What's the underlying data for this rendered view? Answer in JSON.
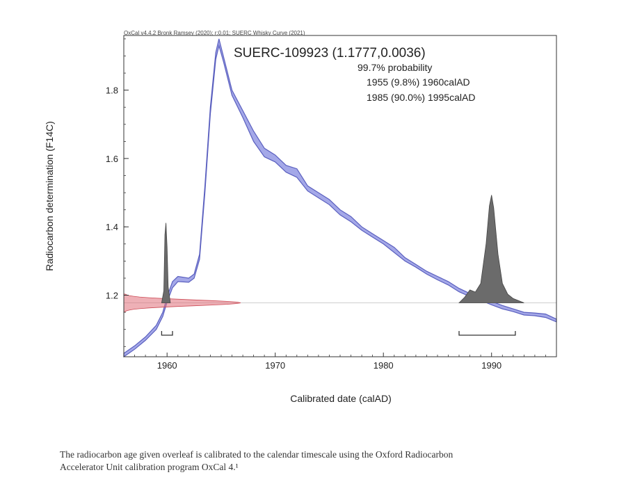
{
  "chart_data": {
    "type": "line",
    "header": "OxCal v4.4.2 Bronk Ramsey (2020); r:0.01; SUERC Whisky Curve (2021)",
    "title": "SUERC-109923 (1.1777,0.0036)",
    "probability_label": "99.7% probability",
    "ranges": [
      "1955 (9.8%) 1960calAD",
      "1985 (90.0%) 1995calAD"
    ],
    "xlabel": "Calibrated date (calAD)",
    "ylabel": "Radiocarbon determination (F14C)",
    "xlim": [
      1956,
      1996
    ],
    "ylim": [
      1.02,
      1.96
    ],
    "x_ticks": [
      1960,
      1970,
      1980,
      1990
    ],
    "y_ticks": [
      1.2,
      1.4,
      1.6,
      1.8
    ],
    "x_tick_labels": [
      "1960",
      "1970",
      "1980",
      "1990"
    ],
    "y_tick_labels": [
      "1.2",
      "1.4",
      "1.6",
      "1.8"
    ],
    "calibration_curve": {
      "name": "SUERC Whisky Curve (2021)",
      "x": [
        1956.0,
        1957.0,
        1958.0,
        1959.0,
        1959.6,
        1960.0,
        1960.5,
        1961.0,
        1962.0,
        1962.5,
        1963.0,
        1963.5,
        1964.0,
        1964.5,
        1964.8,
        1965.2,
        1966.0,
        1967.0,
        1968.0,
        1969.0,
        1970.0,
        1971.0,
        1972.0,
        1973.0,
        1974.0,
        1975.0,
        1976.0,
        1977.0,
        1978.0,
        1979.0,
        1980.0,
        1981.0,
        1982.0,
        1983.0,
        1984.0,
        1985.0,
        1986.0,
        1987.0,
        1988.0,
        1989.0,
        1990.0,
        1991.0,
        1992.0,
        1993.0,
        1994.0,
        1995.0,
        1996.0
      ],
      "upper": [
        1.03,
        1.052,
        1.078,
        1.112,
        1.15,
        1.195,
        1.24,
        1.255,
        1.25,
        1.262,
        1.32,
        1.52,
        1.75,
        1.91,
        1.95,
        1.9,
        1.8,
        1.74,
        1.68,
        1.63,
        1.61,
        1.58,
        1.57,
        1.52,
        1.5,
        1.48,
        1.45,
        1.43,
        1.4,
        1.38,
        1.36,
        1.34,
        1.31,
        1.29,
        1.27,
        1.255,
        1.24,
        1.22,
        1.205,
        1.195,
        1.182,
        1.17,
        1.16,
        1.15,
        1.148,
        1.145,
        1.13
      ],
      "lower": [
        1.02,
        1.042,
        1.068,
        1.1,
        1.138,
        1.18,
        1.222,
        1.24,
        1.238,
        1.25,
        1.305,
        1.5,
        1.73,
        1.89,
        1.93,
        1.885,
        1.785,
        1.72,
        1.65,
        1.605,
        1.59,
        1.56,
        1.545,
        1.505,
        1.485,
        1.465,
        1.435,
        1.415,
        1.39,
        1.37,
        1.35,
        1.325,
        1.3,
        1.282,
        1.262,
        1.245,
        1.23,
        1.21,
        1.196,
        1.185,
        1.172,
        1.16,
        1.152,
        1.142,
        1.14,
        1.135,
        1.122
      ]
    },
    "measurement": {
      "name": "SUERC-109923",
      "value": 1.1777,
      "error": 0.0036
    },
    "posterior": {
      "x": [
        1959.5,
        1959.7,
        1959.8,
        1959.9,
        1960.0,
        1960.1,
        1960.3,
        1987.0,
        1987.5,
        1988.0,
        1988.5,
        1989.0,
        1989.5,
        1989.8,
        1990.0,
        1990.2,
        1990.6,
        1991.0,
        1991.5,
        1992.0,
        1992.5,
        1993.0
      ],
      "density": [
        0.0,
        0.15,
        0.85,
        1.0,
        0.7,
        0.2,
        0.0,
        0.0,
        0.05,
        0.12,
        0.1,
        0.18,
        0.55,
        0.9,
        1.0,
        0.88,
        0.45,
        0.18,
        0.08,
        0.04,
        0.02,
        0.0
      ]
    },
    "range_brackets": [
      [
        1959.5,
        1960.5
      ],
      [
        1987.0,
        1992.2
      ]
    ],
    "colors": {
      "curve_fill": "#a4a8e8",
      "curve_line": "#5a5fbf",
      "measurement": "#e0707a",
      "posterior": "#6b6b6b",
      "axis": "#333333"
    }
  },
  "caption": {
    "line1": "The radiocarbon age given overleaf is calibrated to the calendar timescale using the Oxford Radiocarbon",
    "line2": "Accelerator Unit calibration program OxCal 4.¹"
  }
}
